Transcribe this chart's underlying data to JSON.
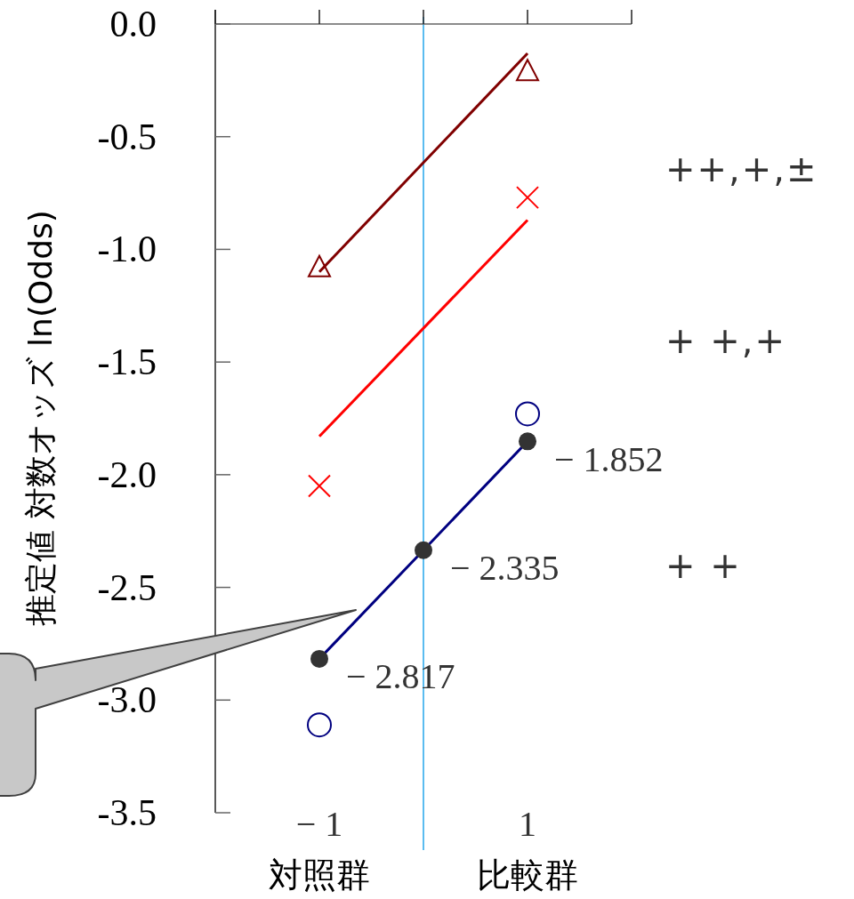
{
  "chart_data": {
    "type": "line",
    "ylabel": "推定値  対数オッズ  ln(Odds)",
    "xlim": [
      -2,
      2
    ],
    "ylim": [
      -3.5,
      0
    ],
    "xticks": [
      {
        "value": -2,
        "label": null
      },
      {
        "value": -1,
        "label": "− 1"
      },
      {
        "value": 0,
        "label": null
      },
      {
        "value": 1,
        "label": "1"
      },
      {
        "value": 2,
        "label": null
      }
    ],
    "yticks": [
      {
        "value": 0,
        "label": "0.0"
      },
      {
        "value": -0.5,
        "label": "-0.5"
      },
      {
        "value": -1,
        "label": "-1.0"
      },
      {
        "value": -1.5,
        "label": "-1.5"
      },
      {
        "value": -2,
        "label": "-2.0"
      },
      {
        "value": -2.5,
        "label": "-2.5"
      },
      {
        "value": -3,
        "label": "-3.0"
      },
      {
        "value": -3.5,
        "label": "-3.5"
      }
    ],
    "grid": false,
    "marker": "none",
    "series": [
      {
        "color": "#800000",
        "x": [
          -1,
          1
        ],
        "values": [
          -1.1,
          -0.13
        ]
      },
      {
        "type": "scatter",
        "color": "#800000",
        "marker": "triangle",
        "x": [
          -1,
          1
        ],
        "values": [
          -1.08,
          -0.21
        ]
      },
      {
        "color": "#ff0000",
        "x": [
          -1,
          1
        ],
        "values": [
          -1.83,
          -0.87
        ]
      },
      {
        "type": "scatter",
        "color": "#ff0000",
        "marker": "cross",
        "x": [
          -1,
          1
        ],
        "values": [
          -2.05,
          -0.77
        ]
      },
      {
        "color": "#000080",
        "x": [
          -1,
          0,
          1
        ],
        "values": [
          -2.817,
          -2.335,
          -1.852
        ]
      },
      {
        "type": "scatter",
        "color": "#000080",
        "marker": "circle",
        "x": [
          -1,
          1
        ],
        "values": [
          -3.11,
          -1.73
        ]
      },
      {
        "type": "scatter",
        "color": "#333333",
        "marker": "dot",
        "x": [
          -1,
          0,
          1
        ],
        "values": [
          -2.817,
          -2.335,
          -1.852
        ],
        "value_labels": [
          "− 2.817",
          "− 2.335",
          "− 1.852"
        ]
      }
    ],
    "ref_lines": [
      {
        "axis": "x",
        "value": 0,
        "color": "#5bbcf0"
      }
    ],
    "annotations": [
      "対照群",
      "比較群",
      "++,+,±",
      "+ +,+",
      "+ +"
    ]
  }
}
